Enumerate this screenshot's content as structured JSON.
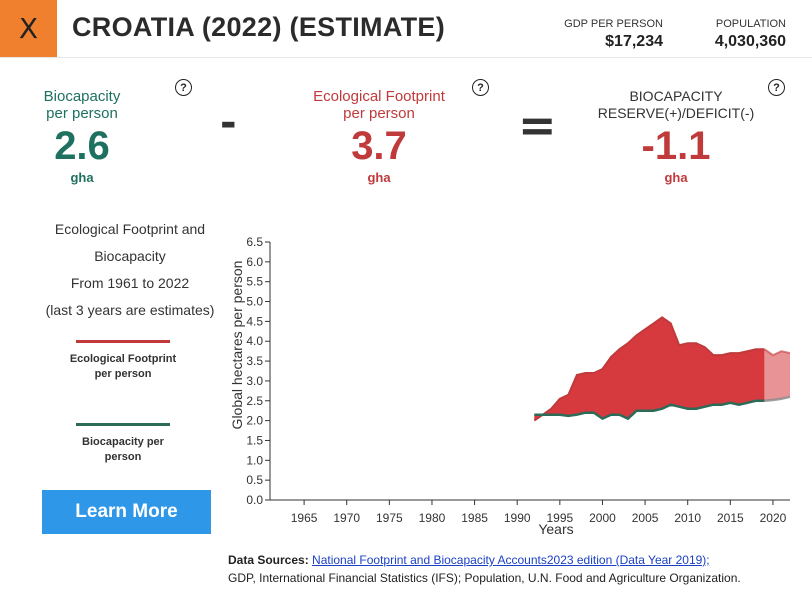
{
  "header": {
    "close_label": "X",
    "title": "CROATIA (2022) (ESTIMATE)",
    "gdp_label": "GDP PER PERSON",
    "gdp_value": "$17,234",
    "population_label": "POPULATION",
    "population_value": "4,030,360"
  },
  "metrics": {
    "biocapacity": {
      "label_line1": "Biocapacity",
      "label_line2": "per person",
      "value": "2.6",
      "unit": "gha"
    },
    "minus_sign": "-",
    "footprint": {
      "label_line1": "Ecological Footprint",
      "label_line2": "per person",
      "value": "3.7",
      "unit": "gha"
    },
    "equals_sign": "=",
    "reserve": {
      "label_line1": "BIOCAPACITY",
      "label_line2": "RESERVE(+)/DEFICIT(-)",
      "value": "-1.1",
      "unit": "gha"
    },
    "help_symbol": "?"
  },
  "side": {
    "desc_line1": "Ecological Footprint and",
    "desc_line2": "Biocapacity",
    "desc_line3": "From 1961 to 2022",
    "desc_line4": "(last 3 years are estimates)",
    "legend_footprint": "Ecological Footprint per person",
    "legend_biocapacity": "Biocapacity per person",
    "learn_more": "Learn More"
  },
  "colors": {
    "footprint": "#c0393b",
    "footprint_fill": "#d63a3f",
    "biocapacity": "#2c6b57",
    "accent": "#f07f2e",
    "button": "#2e97e8"
  },
  "chart_data": {
    "type": "area",
    "xlabel": "Years",
    "ylabel": "Global hectares per person",
    "xlim": [
      1961,
      2022
    ],
    "ylim": [
      0,
      6.5
    ],
    "xticks": [
      1965,
      1970,
      1975,
      1980,
      1985,
      1990,
      1995,
      2000,
      2005,
      2010,
      2015,
      2020
    ],
    "yticks": [
      0.0,
      0.5,
      1.0,
      1.5,
      2.0,
      2.5,
      3.0,
      3.5,
      4.0,
      4.5,
      5.0,
      5.5,
      6.0,
      6.5
    ],
    "estimate_from": 2019,
    "series": [
      {
        "name": "Ecological Footprint per person",
        "x": [
          1992,
          1993,
          1994,
          1995,
          1996,
          1997,
          1998,
          1999,
          2000,
          2001,
          2002,
          2003,
          2004,
          2005,
          2006,
          2007,
          2008,
          2009,
          2010,
          2011,
          2012,
          2013,
          2014,
          2015,
          2016,
          2017,
          2018,
          2019,
          2020,
          2021,
          2022
        ],
        "values": [
          2.0,
          2.15,
          2.3,
          2.55,
          2.65,
          3.15,
          3.2,
          3.2,
          3.3,
          3.6,
          3.8,
          3.95,
          4.15,
          4.3,
          4.45,
          4.6,
          4.45,
          3.9,
          3.95,
          3.95,
          3.85,
          3.65,
          3.65,
          3.7,
          3.7,
          3.75,
          3.8,
          3.8,
          3.65,
          3.75,
          3.7
        ]
      },
      {
        "name": "Biocapacity per person",
        "x": [
          1992,
          1993,
          1994,
          1995,
          1996,
          1997,
          1998,
          1999,
          2000,
          2001,
          2002,
          2003,
          2004,
          2005,
          2006,
          2007,
          2008,
          2009,
          2010,
          2011,
          2012,
          2013,
          2014,
          2015,
          2016,
          2017,
          2018,
          2019,
          2020,
          2021,
          2022
        ],
        "values": [
          2.15,
          2.15,
          2.15,
          2.15,
          2.12,
          2.15,
          2.2,
          2.2,
          2.05,
          2.15,
          2.15,
          2.05,
          2.25,
          2.25,
          2.25,
          2.3,
          2.4,
          2.35,
          2.3,
          2.3,
          2.35,
          2.4,
          2.4,
          2.45,
          2.4,
          2.45,
          2.5,
          2.5,
          2.52,
          2.55,
          2.6
        ]
      }
    ]
  },
  "sources": {
    "label": "Data Sources:",
    "link": "National Footprint and Biocapacity Accounts2023 edition (Data Year 2019);",
    "line2": "GDP, International Financial Statistics (IFS); Population, U.N. Food and Agriculture Organization."
  }
}
